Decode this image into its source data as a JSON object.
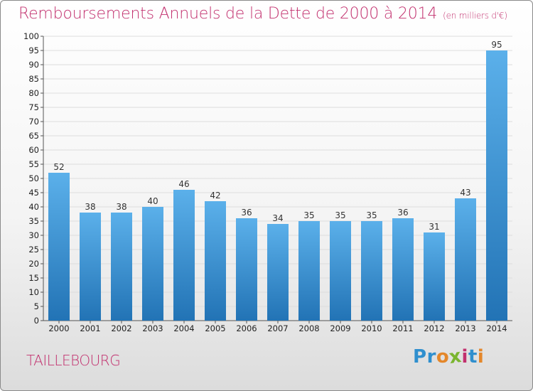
{
  "header": {
    "title": "Remboursements Annuels de la Dette de 2000 à 2014",
    "unit": "(en milliers d'€)"
  },
  "footer": {
    "place": "TAILLEBOURG",
    "logo_letters": [
      {
        "ch": "P",
        "color": "#2f8fce"
      },
      {
        "ch": "r",
        "color": "#2f8fce"
      },
      {
        "ch": "o",
        "color": "#e4872a"
      },
      {
        "ch": "x",
        "color": "#7ab52f"
      },
      {
        "ch": "i",
        "color": "#c2306e"
      },
      {
        "ch": "t",
        "color": "#2f8fce"
      },
      {
        "ch": "i",
        "color": "#e4872a"
      }
    ]
  },
  "chart_data": {
    "type": "bar",
    "title": "Remboursements Annuels de la Dette de 2000 à 2014",
    "categories": [
      "2000",
      "2001",
      "2002",
      "2003",
      "2004",
      "2005",
      "2006",
      "2007",
      "2008",
      "2009",
      "2010",
      "2011",
      "2012",
      "2013",
      "2014"
    ],
    "values": [
      52,
      38,
      38,
      40,
      46,
      42,
      36,
      34,
      35,
      35,
      35,
      36,
      31,
      43,
      95
    ],
    "ylim": [
      0,
      100
    ],
    "ytick_step": 5,
    "grid": true,
    "bar_color_top": "#5bb0ea",
    "bar_color_bottom": "#2273b5",
    "grid_color": "#dddddd"
  }
}
